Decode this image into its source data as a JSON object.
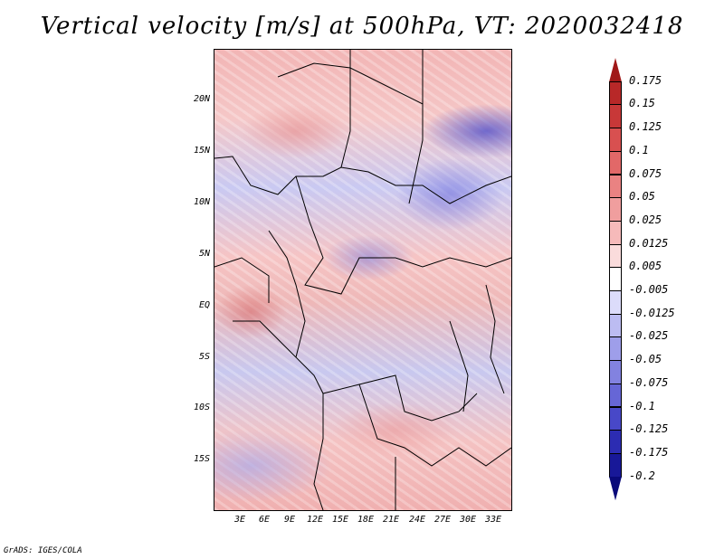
{
  "title": "Vertical velocity [m/s] at 500hPa, VT: 2020032418",
  "map": {
    "y_ticks": [
      "20N",
      "15N",
      "10N",
      "5N",
      "EQ",
      "5S",
      "10S",
      "15S"
    ],
    "x_ticks": [
      "3E",
      "6E",
      "9E",
      "12E",
      "15E",
      "18E",
      "21E",
      "24E",
      "27E",
      "30E",
      "33E"
    ]
  },
  "colorbar": {
    "labels": [
      "0.175",
      "0.15",
      "0.125",
      "0.1",
      "0.075",
      "0.05",
      "0.025",
      "0.0125",
      "0.005",
      "-0.005",
      "-0.0125",
      "-0.025",
      "-0.05",
      "-0.075",
      "-0.1",
      "-0.125",
      "-0.175",
      "-0.2"
    ],
    "colors": [
      "#a01818",
      "#b82828",
      "#c83838",
      "#d85050",
      "#e26868",
      "#ea8282",
      "#f09e9e",
      "#f6baba",
      "#fadcdc",
      "#ffffff",
      "#dcdcfa",
      "#bcbcf2",
      "#9e9eea",
      "#8282e0",
      "#6666d6",
      "#4848c8",
      "#2c2cb2",
      "#181898",
      "#0a0a7a"
    ]
  },
  "footer": "GrADS: IGES/COLA"
}
